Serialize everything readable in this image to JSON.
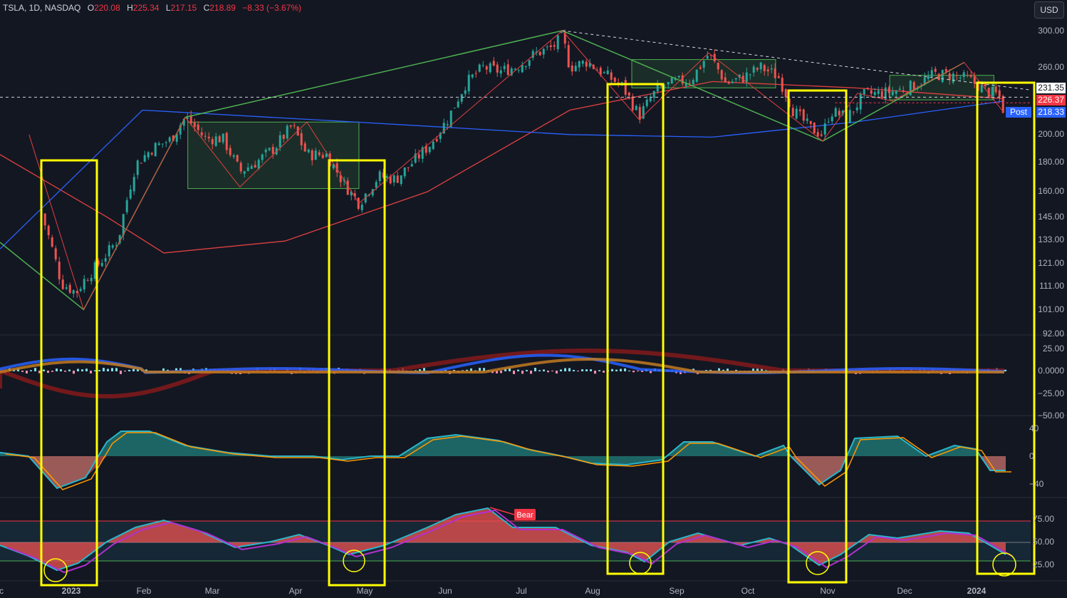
{
  "header": {
    "symbol": "TSLA, 1D, NASDAQ",
    "o_label": "O",
    "o_value": "220.08",
    "h_label": "H",
    "h_value": "225.34",
    "l_label": "L",
    "l_value": "217.15",
    "c_label": "C",
    "c_value": "218.89",
    "change": "−8.33 (−3.67%)"
  },
  "currency_button": "USD",
  "price_tags": {
    "last": "231.35",
    "close": "226.37",
    "post_label": "Post",
    "post_value": "218.33"
  },
  "colors": {
    "background": "#131722",
    "up": "#26a69a",
    "down": "#ef5350",
    "highlight": "#ffff00",
    "ma_red": "#e04040",
    "ma_blue": "#2962ff",
    "zigzag_green": "#4caf50",
    "oscillator_cyan": "#2bb6c9",
    "oscillator_orange": "#ff9800",
    "rsi_purple": "#b030d0"
  },
  "chart_data": [
    {
      "type": "candlestick",
      "panel": "price",
      "scale": "log",
      "ylim": [
        92,
        300
      ],
      "y_ticks": [
        "300.00",
        "260.00",
        "231.35",
        "226.37",
        "218.33",
        "200.00",
        "180.00",
        "160.00",
        "145.00",
        "133.00",
        "121.00",
        "111.00",
        "101.00",
        "92.00"
      ],
      "x_ticks": [
        "c",
        "2023",
        "Feb",
        "Mar",
        "Apr",
        "May",
        "Jun",
        "Jul",
        "Aug",
        "Sep",
        "Oct",
        "Nov",
        "Dec",
        "2024"
      ],
      "close_path": [
        [
          "2022-12-20",
          147
        ],
        [
          "2022-12-28",
          112
        ],
        [
          "2023-01-03",
          108
        ],
        [
          "2023-01-06",
          113
        ],
        [
          "2023-01-13",
          122
        ],
        [
          "2023-01-20",
          133
        ],
        [
          "2023-01-27",
          178
        ],
        [
          "2023-02-03",
          190
        ],
        [
          "2023-02-10",
          196
        ],
        [
          "2023-02-16",
          214
        ],
        [
          "2023-02-24",
          197
        ],
        [
          "2023-03-03",
          197
        ],
        [
          "2023-03-10",
          173
        ],
        [
          "2023-03-17",
          180
        ],
        [
          "2023-03-24",
          190
        ],
        [
          "2023-03-31",
          207
        ],
        [
          "2023-04-06",
          185
        ],
        [
          "2023-04-14",
          185
        ],
        [
          "2023-04-21",
          165
        ],
        [
          "2023-04-27",
          153
        ],
        [
          "2023-05-05",
          170
        ],
        [
          "2023-05-12",
          168
        ],
        [
          "2023-05-19",
          180
        ],
        [
          "2023-05-26",
          193
        ],
        [
          "2023-06-02",
          213
        ],
        [
          "2023-06-09",
          244
        ],
        [
          "2023-06-16",
          260
        ],
        [
          "2023-06-23",
          256
        ],
        [
          "2023-06-30",
          261
        ],
        [
          "2023-07-07",
          274
        ],
        [
          "2023-07-14",
          281
        ],
        [
          "2023-07-18",
          293
        ],
        [
          "2023-07-21",
          260
        ],
        [
          "2023-07-28",
          266
        ],
        [
          "2023-08-04",
          253
        ],
        [
          "2023-08-11",
          242
        ],
        [
          "2023-08-18",
          215
        ],
        [
          "2023-08-25",
          238
        ],
        [
          "2023-09-01",
          245
        ],
        [
          "2023-09-08",
          248
        ],
        [
          "2023-09-15",
          274
        ],
        [
          "2023-09-22",
          244
        ],
        [
          "2023-09-29",
          250
        ],
        [
          "2023-10-06",
          260
        ],
        [
          "2023-10-13",
          251
        ],
        [
          "2023-10-19",
          220
        ],
        [
          "2023-10-26",
          205
        ],
        [
          "2023-10-31",
          200
        ],
        [
          "2023-11-03",
          219
        ],
        [
          "2023-11-10",
          214
        ],
        [
          "2023-11-17",
          234
        ],
        [
          "2023-11-24",
          235
        ],
        [
          "2023-12-01",
          238
        ],
        [
          "2023-12-08",
          243
        ],
        [
          "2023-12-15",
          253
        ],
        [
          "2023-12-22",
          252
        ],
        [
          "2023-12-29",
          248
        ],
        [
          "2024-01-05",
          237
        ],
        [
          "2024-01-10",
          233
        ],
        [
          "2024-01-12",
          218.89
        ]
      ],
      "series": [
        {
          "name": "",
          "color": "red",
          "values": [
            [
              0,
              185
            ],
            [
              150,
              145
            ],
            [
              230,
              126
            ],
            [
              400,
              132
            ],
            [
              600,
              160
            ],
            [
              800,
              220
            ],
            [
              1000,
              246
            ],
            [
              1200,
              240
            ],
            [
              1410,
              230
            ]
          ]
        },
        {
          "name": "",
          "color": "blue",
          "values": [
            [
              0,
              128
            ],
            [
              200,
              220
            ],
            [
              500,
              210
            ],
            [
              800,
              200
            ],
            [
              1000,
              198
            ],
            [
              1200,
              210
            ],
            [
              1410,
              228
            ]
          ]
        }
      ],
      "zigzag": [
        [
          "2023-01-06",
          101
        ],
        [
          "2023-02-16",
          214
        ],
        [
          "2023-07-18",
          300
        ],
        [
          "2023-10-31",
          195
        ],
        [
          "2023-12-27",
          265
        ]
      ],
      "ranges": [
        {
          "from": "2023-02-17",
          "to": "2023-04-27",
          "low": 162,
          "high": 210
        },
        {
          "from": "2023-08-15",
          "to": "2023-10-12",
          "low": 240,
          "high": 268
        },
        {
          "from": "2023-11-27",
          "to": "2024-01-08",
          "low": 229,
          "high": 252
        }
      ]
    },
    {
      "type": "line",
      "panel": "macd",
      "ylim": [
        -50,
        25
      ],
      "y_ticks": [
        "25.00",
        "0.0000",
        "−25.00",
        "−50.00"
      ]
    },
    {
      "type": "area",
      "panel": "oscillator",
      "ylim": [
        -50,
        45
      ],
      "y_ticks": [
        "40",
        "0",
        "−40"
      ]
    },
    {
      "type": "area",
      "panel": "rsi",
      "ylim": [
        15,
        90
      ],
      "y_ticks": [
        "75.00",
        "50.00",
        "25.00"
      ],
      "annotation": "Bear"
    }
  ]
}
